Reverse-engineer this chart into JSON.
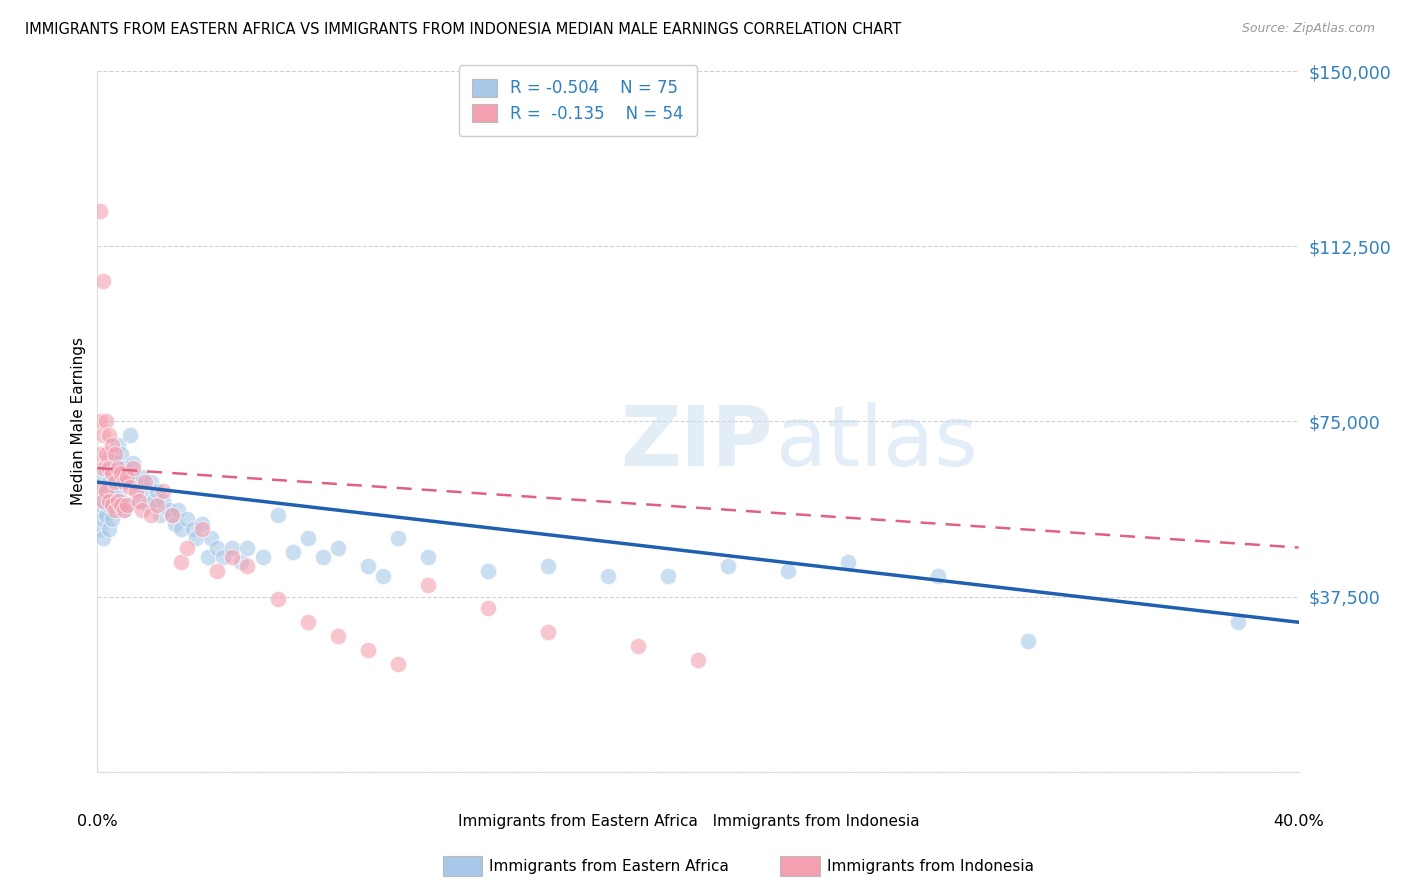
{
  "title": "IMMIGRANTS FROM EASTERN AFRICA VS IMMIGRANTS FROM INDONESIA MEDIAN MALE EARNINGS CORRELATION CHART",
  "source": "Source: ZipAtlas.com",
  "ylabel": "Median Male Earnings",
  "y_ticks": [
    0,
    37500,
    75000,
    112500,
    150000
  ],
  "y_tick_labels": [
    "",
    "$37,500",
    "$75,000",
    "$112,500",
    "$150,000"
  ],
  "xmin": 0.0,
  "xmax": 0.4,
  "ymin": 0,
  "ymax": 150000,
  "watermark_zip": "ZIP",
  "watermark_atlas": "atlas",
  "legend_R1": "-0.504",
  "legend_N1": "75",
  "legend_R2": "-0.135",
  "legend_N2": "54",
  "blue_color": "#a8c8e8",
  "pink_color": "#f4a0b0",
  "blue_line_color": "#2060b0",
  "pink_line_color": "#e06080",
  "blue_scatter_x": [
    0.001,
    0.001,
    0.001,
    0.002,
    0.002,
    0.002,
    0.002,
    0.003,
    0.003,
    0.003,
    0.004,
    0.004,
    0.004,
    0.004,
    0.005,
    0.005,
    0.005,
    0.006,
    0.006,
    0.007,
    0.007,
    0.008,
    0.008,
    0.009,
    0.009,
    0.01,
    0.01,
    0.011,
    0.012,
    0.013,
    0.014,
    0.015,
    0.016,
    0.017,
    0.018,
    0.019,
    0.02,
    0.021,
    0.022,
    0.024,
    0.025,
    0.026,
    0.027,
    0.028,
    0.03,
    0.032,
    0.033,
    0.035,
    0.037,
    0.038,
    0.04,
    0.042,
    0.045,
    0.048,
    0.05,
    0.055,
    0.06,
    0.065,
    0.07,
    0.075,
    0.08,
    0.09,
    0.095,
    0.1,
    0.11,
    0.13,
    0.15,
    0.17,
    0.19,
    0.21,
    0.23,
    0.25,
    0.28,
    0.31,
    0.38
  ],
  "blue_scatter_y": [
    60000,
    56000,
    52000,
    63000,
    58000,
    54000,
    50000,
    65000,
    60000,
    55000,
    67000,
    62000,
    57000,
    52000,
    64000,
    59000,
    54000,
    66000,
    58000,
    70000,
    60000,
    68000,
    58000,
    65000,
    56000,
    63000,
    57000,
    72000,
    66000,
    62000,
    58000,
    63000,
    60000,
    57000,
    62000,
    58000,
    60000,
    55000,
    58000,
    56000,
    55000,
    53000,
    56000,
    52000,
    54000,
    52000,
    50000,
    53000,
    46000,
    50000,
    48000,
    46000,
    48000,
    45000,
    48000,
    46000,
    55000,
    47000,
    50000,
    46000,
    48000,
    44000,
    42000,
    50000,
    46000,
    43000,
    44000,
    42000,
    42000,
    44000,
    43000,
    45000,
    42000,
    28000,
    32000
  ],
  "pink_scatter_x": [
    0.001,
    0.001,
    0.001,
    0.001,
    0.002,
    0.002,
    0.002,
    0.002,
    0.003,
    0.003,
    0.003,
    0.004,
    0.004,
    0.004,
    0.005,
    0.005,
    0.005,
    0.006,
    0.006,
    0.006,
    0.007,
    0.007,
    0.008,
    0.008,
    0.009,
    0.009,
    0.01,
    0.01,
    0.011,
    0.012,
    0.013,
    0.014,
    0.015,
    0.016,
    0.018,
    0.02,
    0.022,
    0.025,
    0.028,
    0.03,
    0.035,
    0.04,
    0.045,
    0.05,
    0.06,
    0.07,
    0.08,
    0.09,
    0.1,
    0.11,
    0.13,
    0.15,
    0.18,
    0.2
  ],
  "pink_scatter_y": [
    120000,
    75000,
    68000,
    60000,
    105000,
    72000,
    65000,
    58000,
    75000,
    68000,
    60000,
    72000,
    65000,
    58000,
    70000,
    64000,
    57000,
    68000,
    62000,
    56000,
    65000,
    58000,
    64000,
    57000,
    62000,
    56000,
    63000,
    57000,
    61000,
    65000,
    60000,
    58000,
    56000,
    62000,
    55000,
    57000,
    60000,
    55000,
    45000,
    48000,
    52000,
    43000,
    46000,
    44000,
    37000,
    32000,
    29000,
    26000,
    23000,
    40000,
    35000,
    30000,
    27000,
    24000
  ],
  "blue_trendline_x": [
    0.0,
    0.4
  ],
  "blue_trendline_y": [
    62000,
    32000
  ],
  "pink_trendline_x": [
    0.0,
    0.4
  ],
  "pink_trendline_y": [
    65000,
    48000
  ]
}
